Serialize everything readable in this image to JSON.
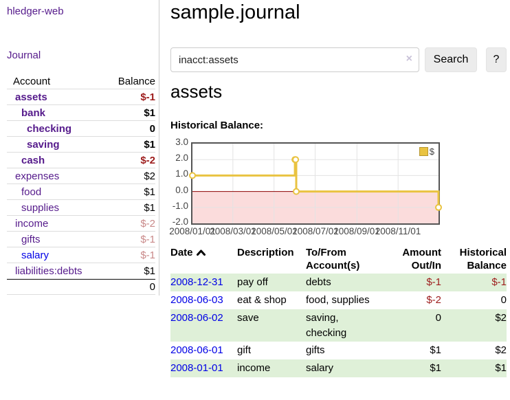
{
  "app": {
    "brand": "hledger-web",
    "nav_journal": "Journal"
  },
  "sidebar": {
    "col_account": "Account",
    "col_balance": "Balance",
    "rows": [
      {
        "name": "assets",
        "balance": "$-1",
        "indent": 0,
        "bold": true,
        "balance_color": "red-strong",
        "link_color": "purple"
      },
      {
        "name": "bank",
        "balance": "$1",
        "indent": 1,
        "bold": true,
        "balance_color": "normal",
        "link_color": "purple"
      },
      {
        "name": "checking",
        "balance": "0",
        "indent": 2,
        "bold": true,
        "balance_color": "normal",
        "link_color": "purple"
      },
      {
        "name": "saving",
        "balance": "$1",
        "indent": 2,
        "bold": true,
        "balance_color": "normal",
        "link_color": "purple"
      },
      {
        "name": "cash",
        "balance": "$-2",
        "indent": 1,
        "bold": true,
        "balance_color": "red-strong",
        "link_color": "purple"
      },
      {
        "name": "expenses",
        "balance": "$2",
        "indent": 0,
        "bold": false,
        "balance_color": "normal",
        "link_color": "purple"
      },
      {
        "name": "food",
        "balance": "$1",
        "indent": 1,
        "bold": false,
        "balance_color": "normal",
        "link_color": "purple"
      },
      {
        "name": "supplies",
        "balance": "$1",
        "indent": 1,
        "bold": false,
        "balance_color": "normal",
        "link_color": "purple"
      },
      {
        "name": "income",
        "balance": "$-2",
        "indent": 0,
        "bold": false,
        "balance_color": "red-faded",
        "link_color": "purple"
      },
      {
        "name": "gifts",
        "balance": "$-1",
        "indent": 1,
        "bold": false,
        "balance_color": "red-faded",
        "link_color": "purple"
      },
      {
        "name": "salary",
        "balance": "$-1",
        "indent": 1,
        "bold": false,
        "balance_color": "red-faded",
        "link_color": "blue"
      },
      {
        "name": "liabilities:debts",
        "balance": "$1",
        "indent": 0,
        "bold": false,
        "balance_color": "normal",
        "link_color": "purple"
      }
    ],
    "total": "0"
  },
  "main": {
    "title": "sample.journal",
    "search": {
      "value": "inacct:assets",
      "clear_icon": "×",
      "search_label": "Search",
      "help_label": "?"
    },
    "account_heading": "assets",
    "section_label": "Historical Balance:"
  },
  "chart_data": {
    "type": "line",
    "title": "Historical Balance:",
    "step": true,
    "series": [
      {
        "name": "$",
        "color": "#e9c341",
        "points": [
          {
            "x": "2008-01-01",
            "y": 1
          },
          {
            "x": "2008-06-01",
            "y": 2
          },
          {
            "x": "2008-06-02",
            "y": 2
          },
          {
            "x": "2008-06-03",
            "y": 0
          },
          {
            "x": "2008-12-31",
            "y": -1
          }
        ]
      }
    ],
    "xlim": [
      "2008-01-01",
      "2008-12-31"
    ],
    "ylim": [
      -2,
      3
    ],
    "yticks": [
      "3.0",
      "2.0",
      "1.0",
      "0.0",
      "-1.0",
      "-2.0"
    ],
    "xticks": [
      "2008/01/01",
      "2008/03/01",
      "2008/05/01",
      "2008/07/01",
      "2008/09/01",
      "2008/11/01"
    ],
    "grid": true,
    "negative_fill": "#fbdcdc",
    "zero_line_color": "#8b0000",
    "grid_color": "#e3e3e3",
    "border_color": "#545454",
    "legend": {
      "label": "$",
      "position": "top-right"
    }
  },
  "register": {
    "headers": [
      "Date",
      "Description",
      "To/From Account(s)",
      "Amount Out/In",
      "Historical Balance"
    ],
    "sort_indicator": "ascending",
    "rows": [
      {
        "date": "2008-12-31",
        "description": "pay off",
        "accounts": "debts",
        "amount": "$-1",
        "amount_neg": true,
        "balance": "$-1",
        "balance_neg": true
      },
      {
        "date": "2008-06-03",
        "description": "eat & shop",
        "accounts": "food, supplies",
        "amount": "$-2",
        "amount_neg": true,
        "balance": "0",
        "balance_neg": false
      },
      {
        "date": "2008-06-02",
        "description": "save",
        "accounts": "saving, checking",
        "amount": "0",
        "amount_neg": false,
        "balance": "$2",
        "balance_neg": false
      },
      {
        "date": "2008-06-01",
        "description": "gift",
        "accounts": "gifts",
        "amount": "$1",
        "amount_neg": false,
        "balance": "$2",
        "balance_neg": false
      },
      {
        "date": "2008-01-01",
        "description": "income",
        "accounts": "salary",
        "amount": "$1",
        "amount_neg": false,
        "balance": "$1",
        "balance_neg": false
      }
    ]
  }
}
